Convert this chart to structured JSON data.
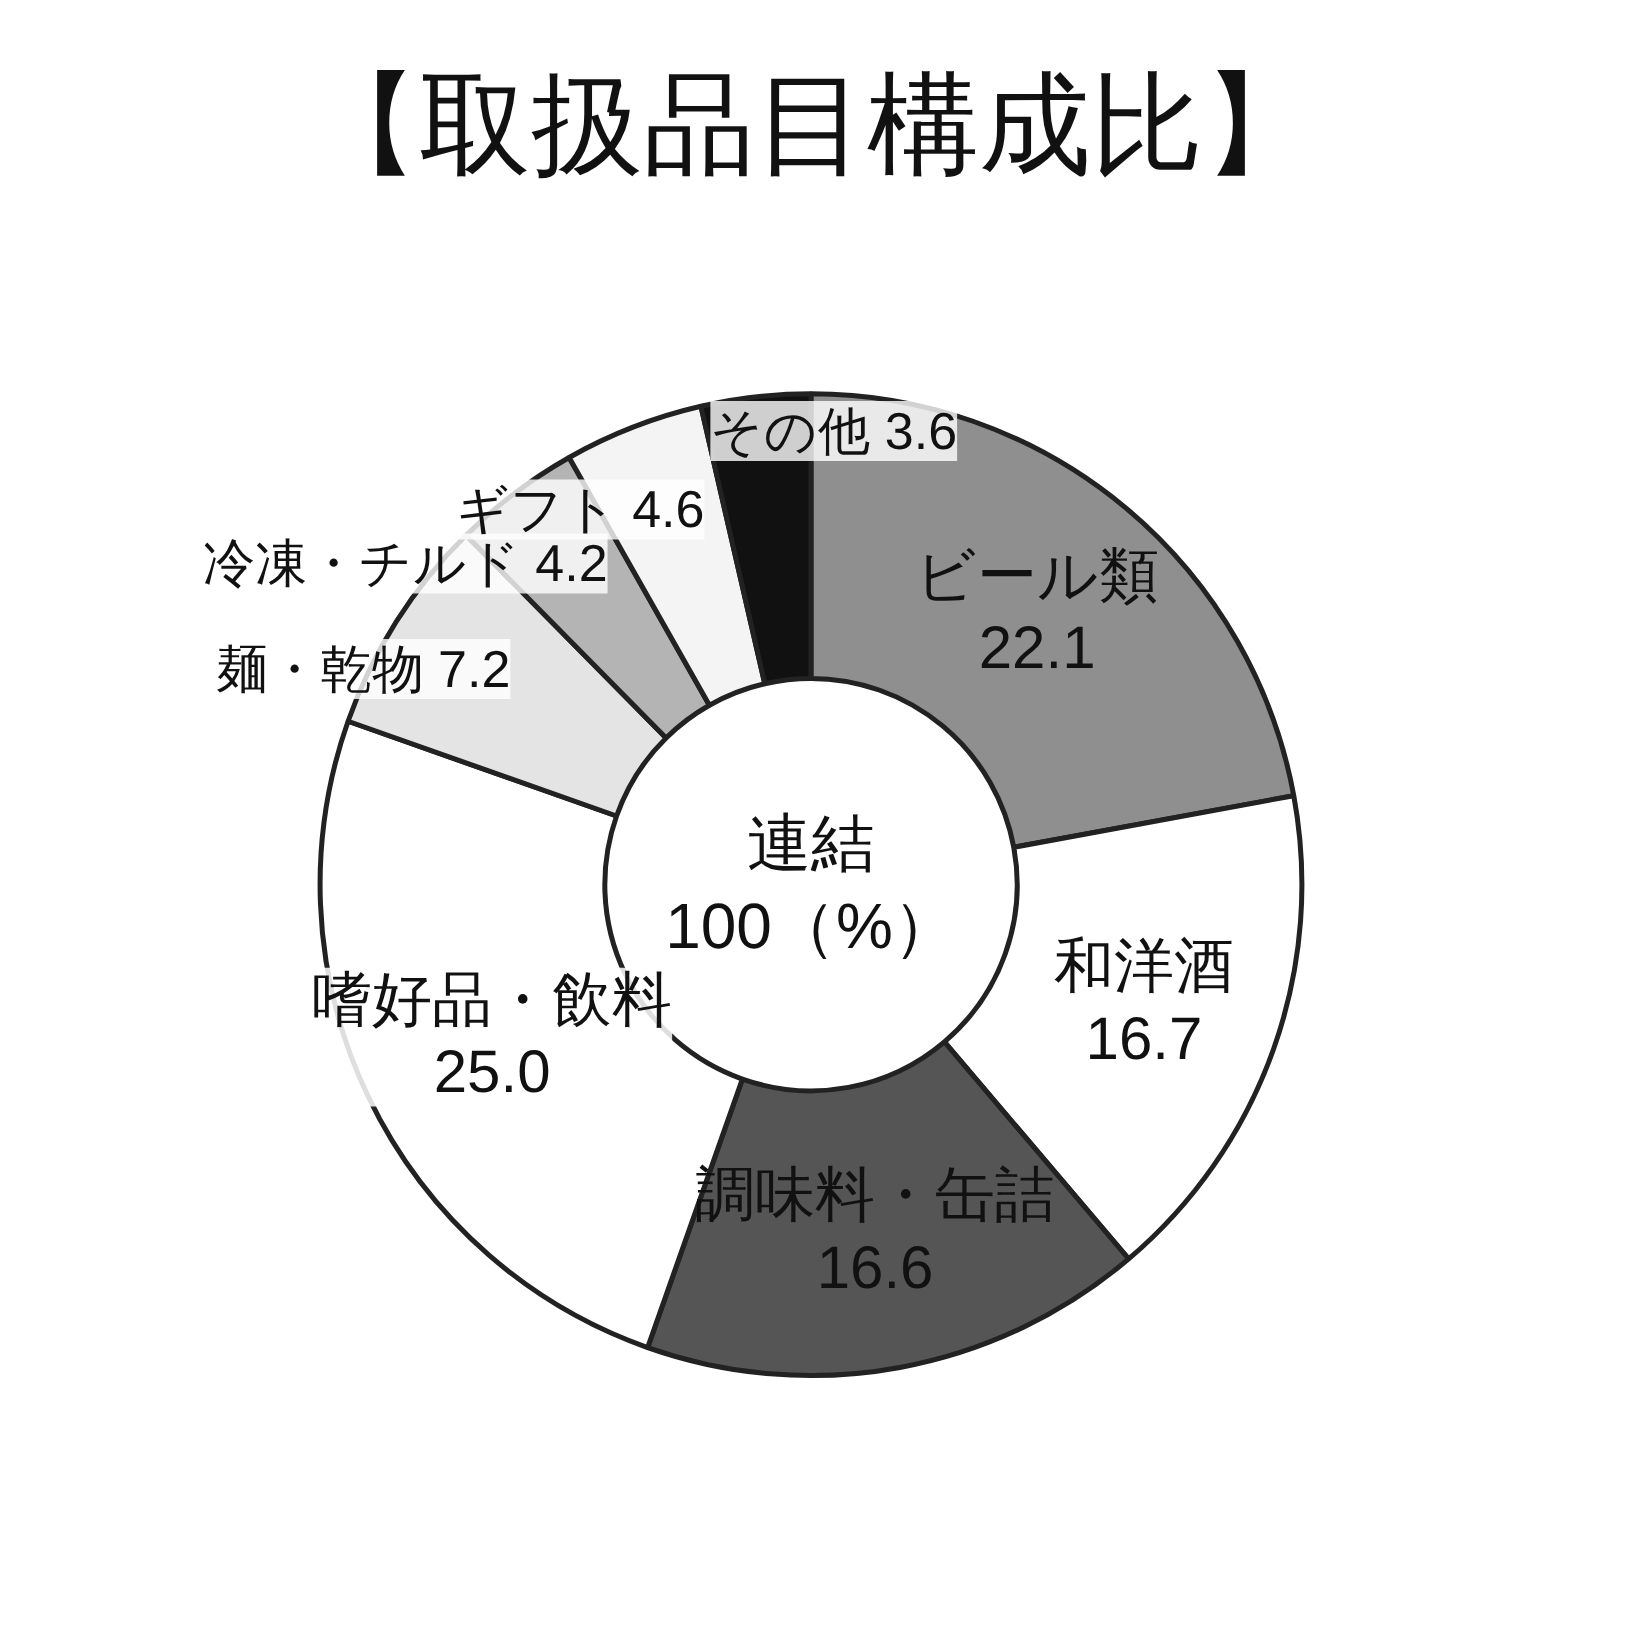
{
  "chart_data": {
    "type": "donut",
    "title": "【取扱品目構成比】",
    "categories": [
      "ビール類",
      "和洋酒",
      "調味料・缶詰",
      "嗜好品・飲料",
      "麺・乾物",
      "冷凍・チルド",
      "ギフト",
      "その他"
    ],
    "values": [
      22.1,
      16.7,
      16.6,
      25.0,
      7.2,
      4.2,
      4.6,
      3.6
    ],
    "colors": [
      "#8f8f8f",
      "#ffffff",
      "#555555",
      "#ffffff",
      "#e4e4e4",
      "#b4b4b4",
      "#f4f4f4",
      "#111111"
    ],
    "data_labels": true,
    "value_labels": [
      "22.1",
      "16.7",
      "16.6",
      "25.0",
      "7.2",
      "4.2",
      "4.6",
      "3.6"
    ],
    "annotations": [
      "連結\n100（%）"
    ]
  }
}
